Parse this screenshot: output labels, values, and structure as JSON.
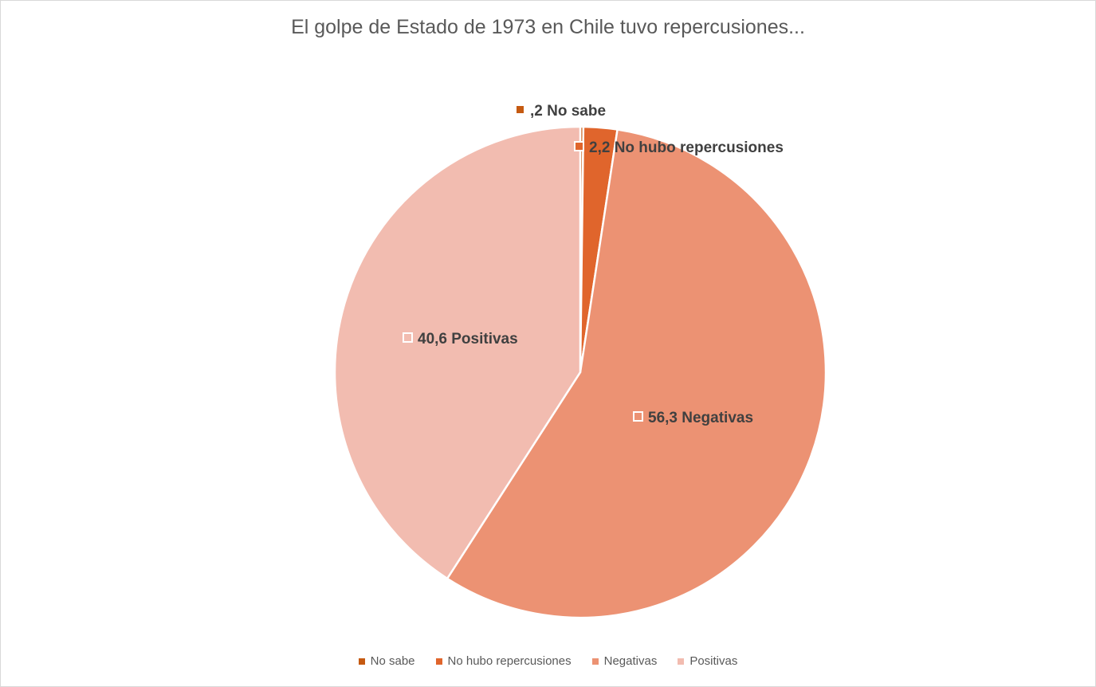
{
  "chart_data": {
    "type": "pie",
    "title": "El golpe de Estado de 1973 en Chile tuvo repercusiones...",
    "slices": [
      {
        "label": "No sabe",
        "value": 0.2,
        "value_label": ",2",
        "color": "#c55a11"
      },
      {
        "label": "No hubo repercusiones",
        "value": 2.2,
        "value_label": "2,2",
        "color": "#e0652c"
      },
      {
        "label": "Negativas",
        "value": 56.3,
        "value_label": "56,3",
        "color": "#ec9273"
      },
      {
        "label": "Positivas",
        "value": 40.6,
        "value_label": "40,6",
        "color": "#f2bcb0"
      }
    ],
    "legend_position": "bottom"
  }
}
